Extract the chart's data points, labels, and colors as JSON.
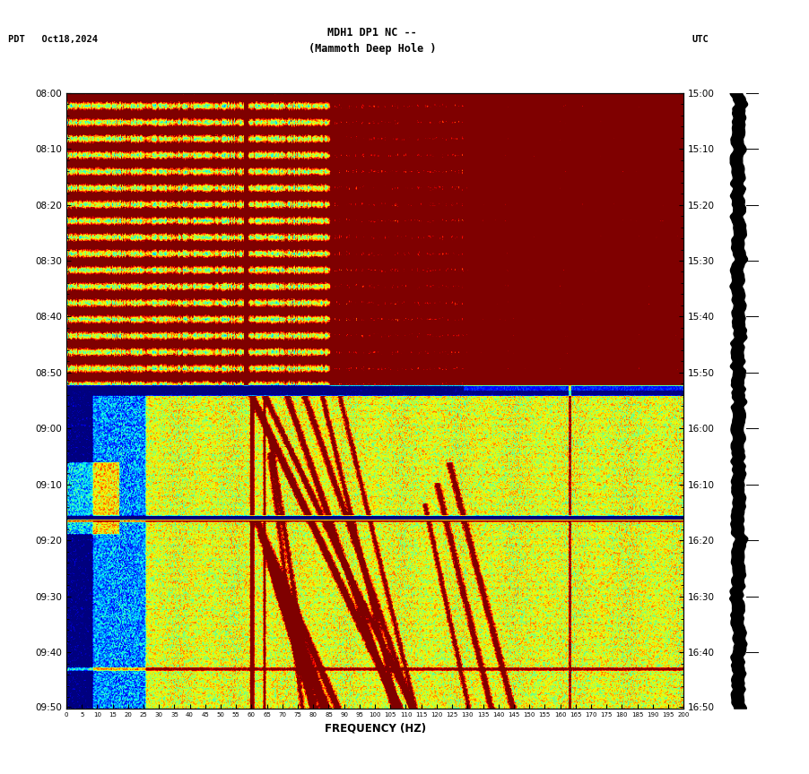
{
  "title_line1": "MDH1 DP1 NC --",
  "title_line2": "(Mammoth Deep Hole )",
  "left_label": "PDT   Oct18,2024",
  "right_label": "UTC",
  "xlabel": "FREQUENCY (HZ)",
  "left_yticks_labels": [
    "08:00",
    "08:10",
    "08:20",
    "08:30",
    "08:40",
    "08:50",
    "09:00",
    "09:10",
    "09:20",
    "09:30",
    "09:40",
    "09:50"
  ],
  "right_yticks_labels": [
    "15:00",
    "15:10",
    "15:20",
    "15:30",
    "15:40",
    "15:50",
    "16:00",
    "16:10",
    "16:20",
    "16:30",
    "16:40",
    "16:50"
  ],
  "freq_min": 0,
  "freq_max": 200,
  "time_steps": 600,
  "freq_steps": 700,
  "background_color": "#ffffff",
  "seed": 42
}
